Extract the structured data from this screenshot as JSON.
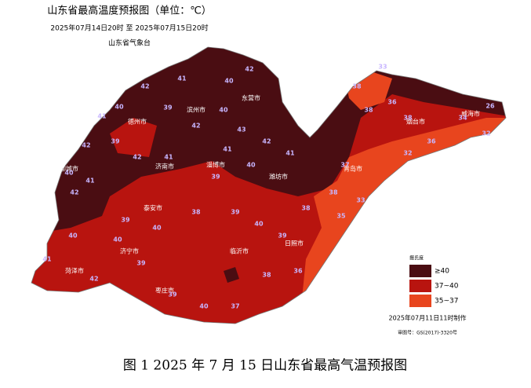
{
  "header": {
    "title": "山东省最高温度预报图（单位：℃）",
    "subtitle": "2025年07月14日20时 至 2025年07月15日20时",
    "issuer": "山东省气象台"
  },
  "cities": [
    "德州市",
    "滨州市",
    "东营市",
    "济南市",
    "淄博市",
    "潍坊市",
    "烟台市",
    "威海市",
    "青岛市",
    "聊城市",
    "泰安市",
    "济宁市",
    "菏泽市",
    "枣庄市",
    "临沂市",
    "日照市"
  ],
  "stations": [
    41,
    40,
    42,
    39,
    42,
    40,
    41,
    39,
    42,
    40,
    41,
    42,
    42,
    41,
    42,
    40,
    43,
    42,
    41,
    41,
    40,
    39,
    38,
    39,
    40,
    39,
    38,
    38,
    37,
    38,
    36,
    38,
    36,
    34,
    26,
    32,
    32,
    33,
    38,
    40,
    41,
    42,
    40,
    39,
    39,
    40,
    37,
    38,
    36,
    35,
    33,
    39,
    40
  ],
  "legend": {
    "title": "摄氏度",
    "items": [
      {
        "label": "≥40",
        "color": "#4a0d12"
      },
      {
        "label": "37~40",
        "color": "#b8140f"
      },
      {
        "label": "35~37",
        "color": "#e8451e"
      }
    ]
  },
  "footer": {
    "made": "2025年07月11日11时制作",
    "map_number": "审图号：GS(2017)-3320号"
  },
  "caption": "图 1 2025 年 7 月 15 日山东省最高气温预报图"
}
